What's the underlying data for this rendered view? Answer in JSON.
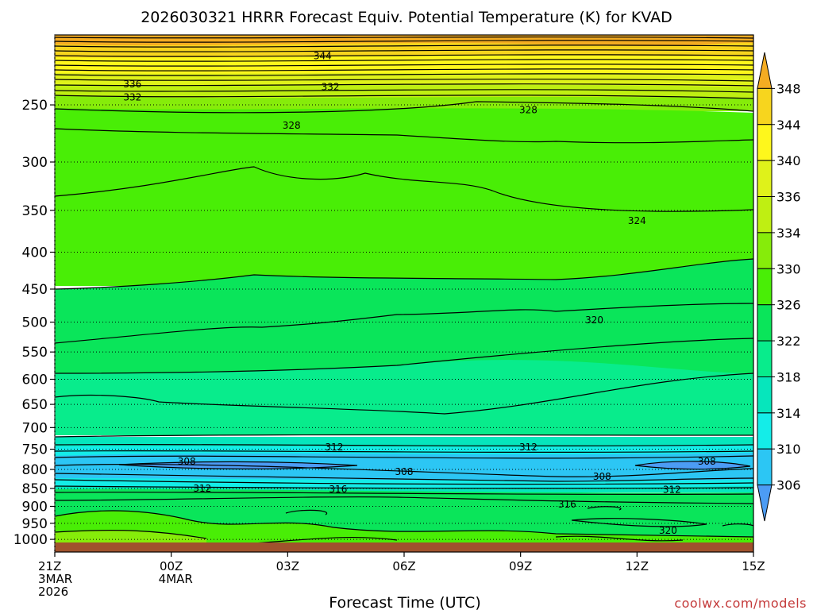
{
  "chart_data": {
    "type": "heatmap",
    "title": "2026030321 HRRR Forecast Equiv. Potential Temperature (K) for KVAD",
    "xlabel": "Forecast Time (UTC)",
    "ylabel": "",
    "credit": "coolwx.com/models",
    "x_ticks": [
      {
        "hour": 0,
        "lines": [
          "21Z",
          "3MAR",
          "2026"
        ]
      },
      {
        "hour": 3,
        "lines": [
          "00Z",
          "4MAR"
        ]
      },
      {
        "hour": 6,
        "lines": [
          "03Z"
        ]
      },
      {
        "hour": 9,
        "lines": [
          "06Z"
        ]
      },
      {
        "hour": 12,
        "lines": [
          "09Z"
        ]
      },
      {
        "hour": 15,
        "lines": [
          "12Z"
        ]
      },
      {
        "hour": 18,
        "lines": [
          "15Z"
        ]
      }
    ],
    "xlim_hours": [
      0,
      18
    ],
    "y_ticks_hPa": [
      250,
      300,
      350,
      400,
      450,
      500,
      550,
      600,
      650,
      700,
      750,
      800,
      850,
      900,
      950,
      1000
    ],
    "ylim_hPa": [
      200,
      1010
    ],
    "surface_pressure_hPa": 1011,
    "colorbar": {
      "labels": [
        348,
        344,
        340,
        336,
        334,
        330,
        326,
        322,
        318,
        314,
        310,
        306
      ],
      "colors": [
        "#f4ac22",
        "#f7d51e",
        "#fef71c",
        "#dff21a",
        "#bfef12",
        "#86ec0a",
        "#49ee06",
        "#0ae55a",
        "#08ec8c",
        "#06e6bc",
        "#14ede8",
        "#2cc6f4",
        "#4c9cf4"
      ]
    },
    "contour_labels": [
      {
        "text": "344",
        "hour": 6.9,
        "p": 214
      },
      {
        "text": "336",
        "hour": 2.0,
        "p": 234
      },
      {
        "text": "332",
        "hour": 2.0,
        "p": 244
      },
      {
        "text": "332",
        "hour": 7.1,
        "p": 236
      },
      {
        "text": "328",
        "hour": 6.1,
        "p": 267
      },
      {
        "text": "328",
        "hour": 12.2,
        "p": 254
      },
      {
        "text": "324",
        "hour": 15.0,
        "p": 362
      },
      {
        "text": "320",
        "hour": 13.9,
        "p": 497
      },
      {
        "text": "312",
        "hour": 7.2,
        "p": 745
      },
      {
        "text": "312",
        "hour": 12.2,
        "p": 745
      },
      {
        "text": "308",
        "hour": 3.4,
        "p": 780
      },
      {
        "text": "308",
        "hour": 9.0,
        "p": 806
      },
      {
        "text": "308",
        "hour": 14.1,
        "p": 818
      },
      {
        "text": "308",
        "hour": 16.8,
        "p": 780
      },
      {
        "text": "312",
        "hour": 3.8,
        "p": 850
      },
      {
        "text": "316",
        "hour": 7.3,
        "p": 852
      },
      {
        "text": "312",
        "hour": 15.9,
        "p": 853
      },
      {
        "text": "316",
        "hour": 13.2,
        "p": 894
      },
      {
        "text": "320",
        "hour": 15.8,
        "p": 972
      }
    ]
  }
}
